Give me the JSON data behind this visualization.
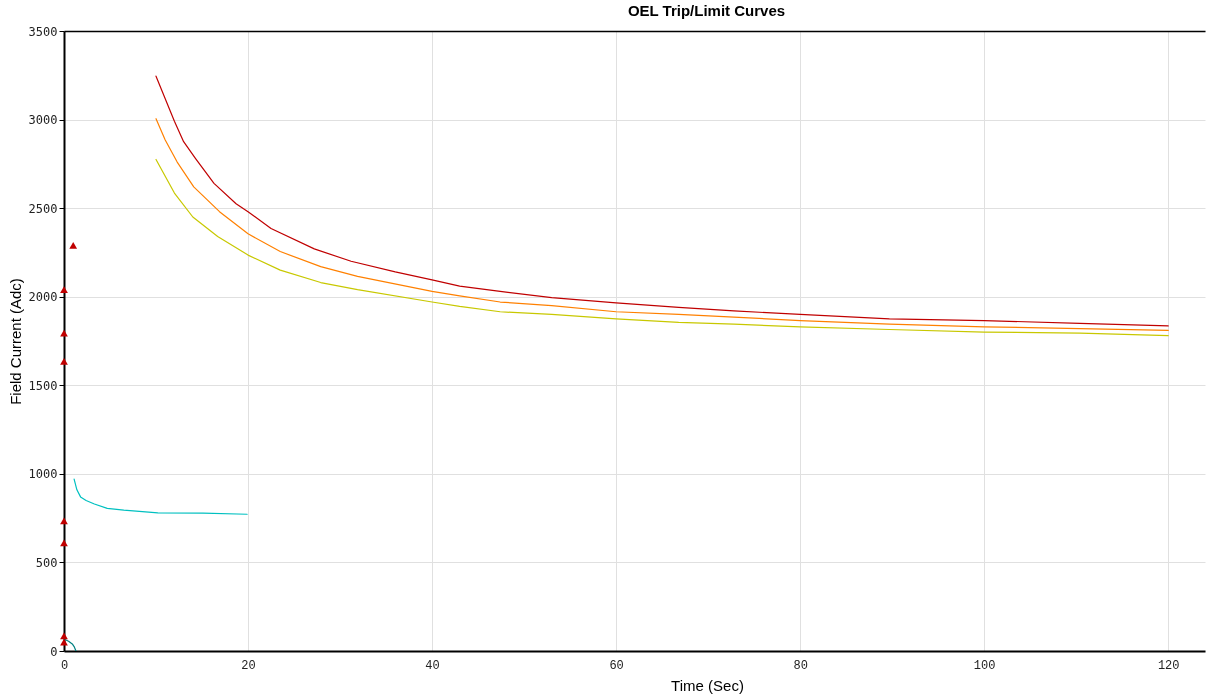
{
  "chart_data": {
    "type": "line",
    "title": "OEL Trip/Limit Curves",
    "xlabel": "Time (Sec)",
    "ylabel": "Field Current (Adc)",
    "xlim": [
      0,
      124
    ],
    "ylim": [
      0,
      3500
    ],
    "xticks": [
      0,
      20,
      40,
      60,
      80,
      100,
      120
    ],
    "yticks": [
      0,
      500,
      1000,
      1500,
      2000,
      2500,
      3000,
      3500
    ],
    "grid": true,
    "series": [
      {
        "color": "#c00000",
        "x": [
          10,
          10.9,
          12,
          13,
          14.3,
          16.3,
          18.7,
          20,
          22.5,
          27.2,
          31.2,
          36,
          40,
          43,
          47.4,
          53,
          60,
          66.8,
          72.8,
          80,
          89.7,
          100,
          110.4,
          120
        ],
        "values": [
          3245,
          3130,
          2990,
          2875,
          2780,
          2640,
          2525,
          2480,
          2385,
          2270,
          2200,
          2140,
          2095,
          2060,
          2030,
          1995,
          1965,
          1940,
          1920,
          1900,
          1875,
          1865,
          1850,
          1835
        ]
      },
      {
        "color": "#ff8000",
        "x": [
          10,
          11,
          12.3,
          14.1,
          16.9,
          20,
          23.5,
          27.9,
          31.9,
          40,
          43,
          47.4,
          53,
          60,
          66.8,
          72.8,
          80,
          89.7,
          100,
          110.4,
          120
        ],
        "values": [
          3005,
          2885,
          2760,
          2620,
          2480,
          2355,
          2255,
          2170,
          2115,
          2030,
          2005,
          1970,
          1950,
          1915,
          1900,
          1885,
          1865,
          1845,
          1830,
          1820,
          1810
        ]
      },
      {
        "color": "#c8c800",
        "x": [
          10,
          12,
          14,
          16.7,
          20,
          23.5,
          27.9,
          31.9,
          40,
          43,
          47.4,
          53,
          60,
          66.8,
          72.8,
          80,
          89.7,
          100,
          110.4,
          120
        ],
        "values": [
          2775,
          2585,
          2450,
          2340,
          2235,
          2150,
          2080,
          2040,
          1970,
          1945,
          1915,
          1900,
          1875,
          1855,
          1845,
          1830,
          1815,
          1800,
          1795,
          1780
        ]
      },
      {
        "color": "#00c0c0",
        "x": [
          1.1,
          1.4,
          1.8,
          2.4,
          3.3,
          4.7,
          6.5,
          10.2,
          15.1,
          19.9
        ],
        "values": [
          970,
          910,
          870,
          850,
          830,
          805,
          795,
          780,
          778,
          772
        ]
      },
      {
        "color": "#008080",
        "x": [
          0.1,
          0.5,
          0.9,
          1.1,
          1.3
        ],
        "values": [
          65,
          55,
          40,
          25,
          0
        ]
      },
      {
        "type": "scatter",
        "marker": "triangle",
        "color": "#c00000",
        "x": [
          1,
          0,
          0,
          0,
          0,
          0,
          0,
          0
        ],
        "values": [
          2290,
          2040,
          1795,
          1635,
          735,
          610,
          85,
          50
        ]
      }
    ]
  }
}
